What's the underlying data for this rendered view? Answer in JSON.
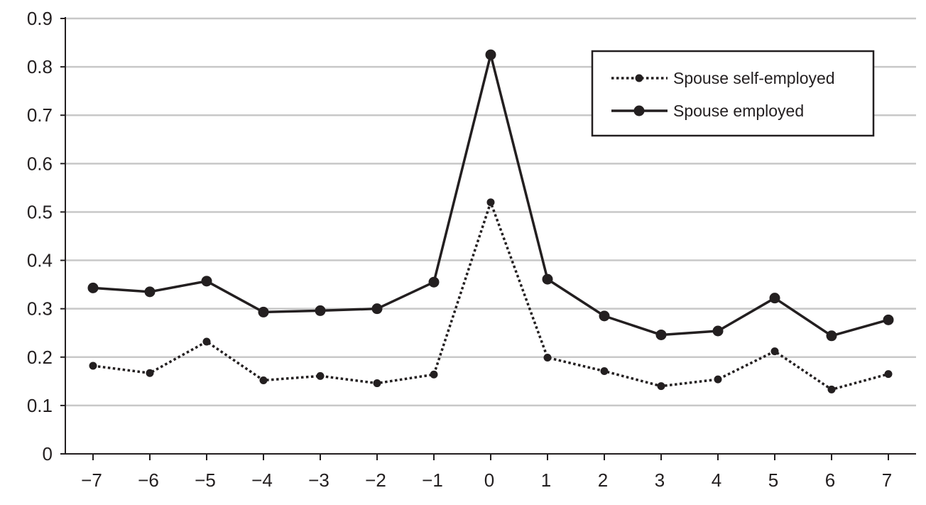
{
  "chart_data": {
    "type": "line",
    "title": "",
    "xlabel": "",
    "ylabel": "",
    "x": [
      -7,
      -6,
      -5,
      -4,
      -3,
      -2,
      -1,
      0,
      1,
      2,
      3,
      4,
      5,
      6,
      7
    ],
    "x_tick_labels": [
      "−7",
      "−6",
      "−5",
      "−4",
      "−3",
      "−2",
      "−1",
      "0",
      "1",
      "2",
      "3",
      "4",
      "5",
      "6",
      "7"
    ],
    "ylim": [
      0,
      0.9
    ],
    "y_ticks": [
      0,
      0.1,
      0.2,
      0.3,
      0.4,
      0.5,
      0.6,
      0.7,
      0.8,
      0.9
    ],
    "y_tick_labels": [
      "0",
      "0.1",
      "0.2",
      "0.3",
      "0.4",
      "0.5",
      "0.6",
      "0.7",
      "0.8",
      "0.9"
    ],
    "grid": "horizontal",
    "legend_position": "top-right",
    "series": [
      {
        "name": "Spouse self-employed",
        "style": "dotted",
        "color": "#231f20",
        "values": [
          0.182,
          0.167,
          0.232,
          0.152,
          0.161,
          0.146,
          0.164,
          0.52,
          0.199,
          0.171,
          0.14,
          0.154,
          0.212,
          0.133,
          0.165
        ]
      },
      {
        "name": "Spouse employed",
        "style": "solid",
        "color": "#231f20",
        "values": [
          0.343,
          0.335,
          0.357,
          0.293,
          0.296,
          0.3,
          0.355,
          0.825,
          0.361,
          0.285,
          0.246,
          0.254,
          0.322,
          0.244,
          0.277
        ]
      }
    ]
  }
}
